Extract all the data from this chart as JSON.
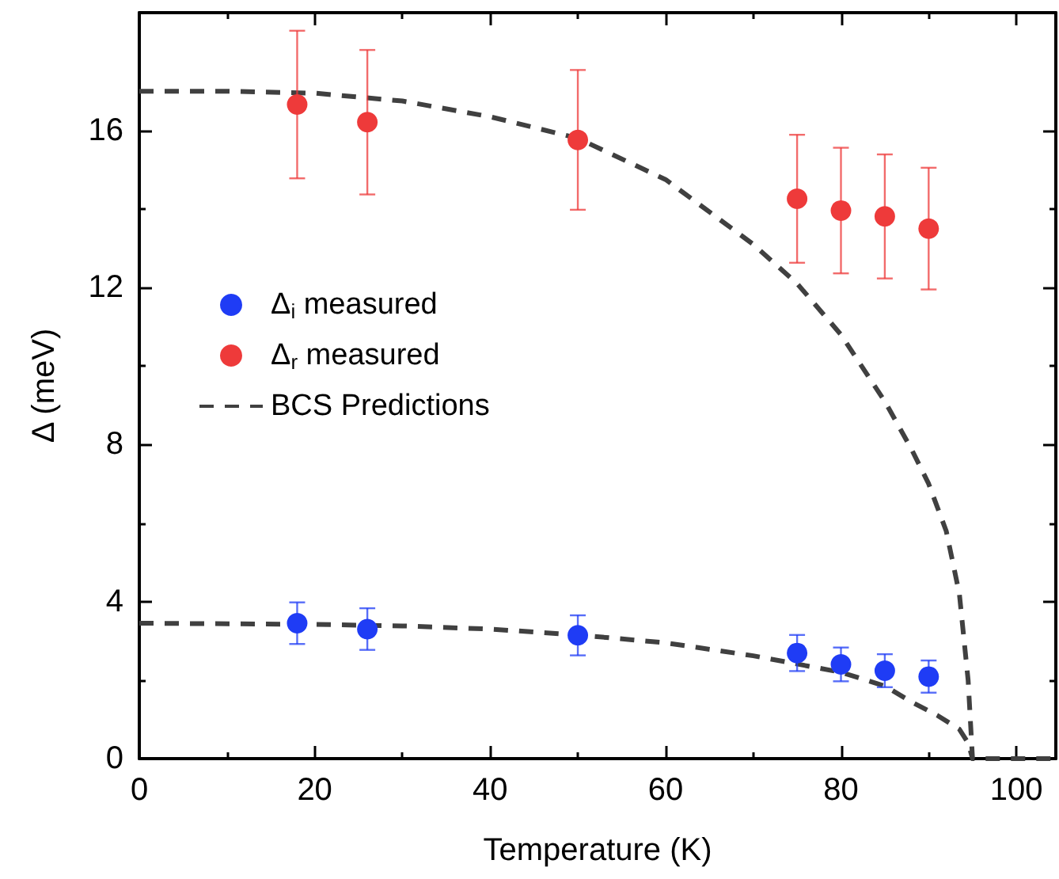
{
  "chart_data": {
    "type": "scatter",
    "xlabel": "Temperature (K)",
    "ylabel": "Δ (meV)",
    "xlim": [
      0,
      104.5
    ],
    "ylim": [
      0,
      19
    ],
    "xticks": [
      0,
      20,
      40,
      60,
      80,
      100
    ],
    "yticks": [
      0,
      4,
      8,
      12,
      16
    ],
    "grid": false,
    "legend": "left",
    "marker": "circle",
    "series": [
      {
        "name": "Δ$_{i}$ measured",
        "color": "#1f3cf5",
        "x": [
          18,
          26,
          50,
          75,
          80,
          85,
          90
        ],
        "values": [
          3.45,
          3.3,
          3.14,
          2.69,
          2.4,
          2.24,
          2.09
        ],
        "errors": [
          0.53,
          0.53,
          0.51,
          0.46,
          0.43,
          0.42,
          0.41
        ]
      },
      {
        "name": "Δ$_{r}$ measured",
        "color": "#ee3a3a",
        "x": [
          18,
          26,
          50,
          75,
          80,
          85,
          90
        ],
        "values": [
          16.66,
          16.21,
          15.76,
          14.26,
          13.96,
          13.81,
          13.5
        ],
        "errors": [
          1.88,
          1.84,
          1.78,
          1.63,
          1.6,
          1.58,
          1.55
        ]
      },
      {
        "name": "BCS Predictions",
        "type": "line",
        "line_style": "dashed",
        "marker": "none",
        "color": "#404040",
        "x": [
          0,
          10,
          20,
          30,
          40,
          50,
          60,
          70,
          75,
          80,
          85,
          88,
          90,
          92,
          93.5,
          94.5,
          95,
          104.5
        ],
        "values": [
          17,
          17,
          16.95,
          16.75,
          16.35,
          15.8,
          14.75,
          13.1,
          12.1,
          10.8,
          9.1,
          7.9,
          7,
          5.8,
          4.2,
          2,
          0,
          0
        ]
      },
      {
        "type": "line",
        "line_style": "dashed",
        "marker": "none",
        "color": "#404040",
        "x": [
          0,
          20,
          30,
          40,
          50,
          60,
          70,
          80,
          85,
          88,
          91,
          93.5,
          94.5,
          95
        ],
        "values": [
          3.45,
          3.42,
          3.38,
          3.3,
          3.15,
          2.95,
          2.62,
          2.2,
          1.85,
          1.45,
          1.1,
          0.75,
          0.4,
          0
        ]
      }
    ]
  }
}
